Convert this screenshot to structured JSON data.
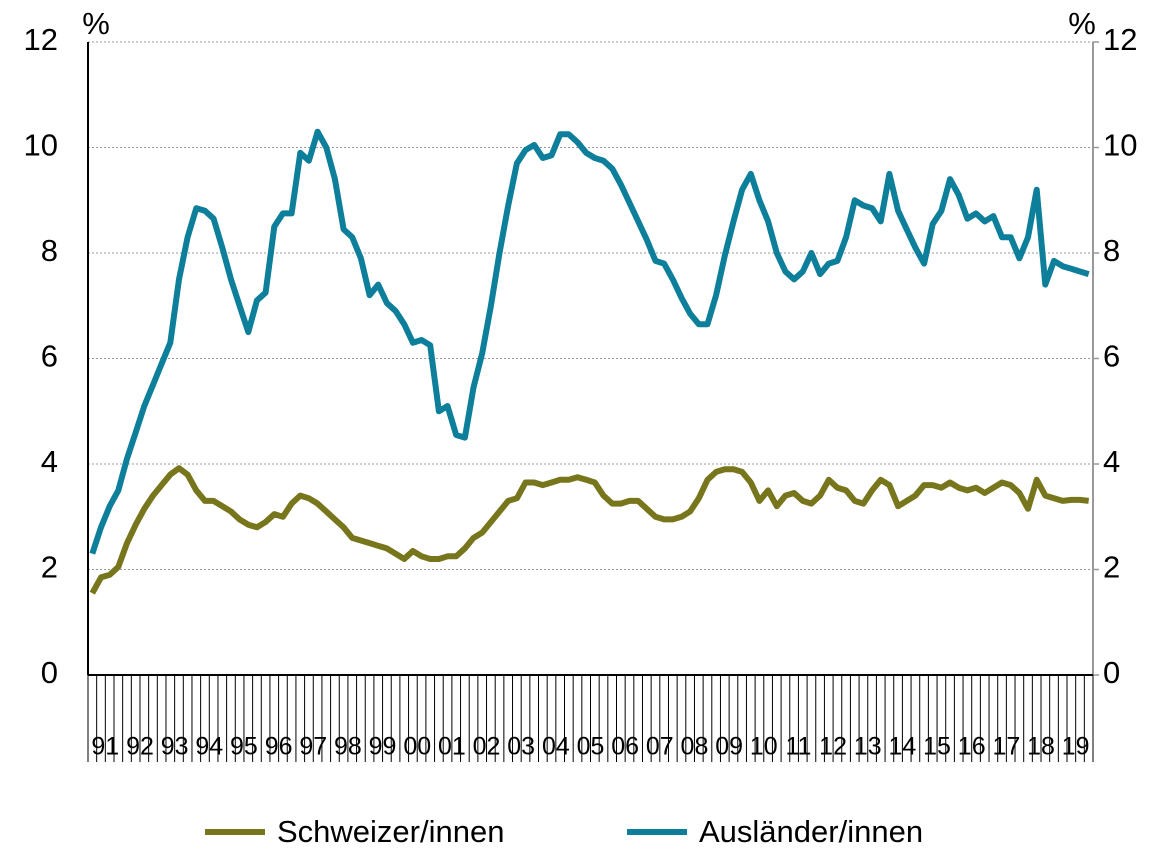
{
  "chart_data": {
    "type": "line",
    "y_unit": "%",
    "y2_unit": "%",
    "categories": [
      "91",
      null,
      null,
      null,
      "92",
      null,
      null,
      null,
      "93",
      null,
      null,
      null,
      "94",
      null,
      null,
      null,
      "95",
      null,
      null,
      null,
      "96",
      null,
      null,
      null,
      "97",
      null,
      null,
      null,
      "98",
      null,
      null,
      null,
      "99",
      null,
      null,
      null,
      "00",
      null,
      null,
      null,
      "01",
      null,
      null,
      null,
      "02",
      null,
      null,
      null,
      "03",
      null,
      null,
      null,
      "04",
      null,
      null,
      null,
      "05",
      null,
      null,
      null,
      "06",
      null,
      null,
      null,
      "07",
      null,
      null,
      null,
      "08",
      null,
      null,
      null,
      "09",
      null,
      null,
      null,
      "10",
      null,
      null,
      null,
      "11",
      null,
      null,
      null,
      "12",
      null,
      null,
      null,
      "13",
      null,
      null,
      null,
      "14",
      null,
      null,
      null,
      "15",
      null,
      null,
      null,
      "16",
      null,
      null,
      null,
      "17",
      null,
      null,
      null,
      "18",
      null,
      null,
      null,
      "19",
      null,
      null,
      null
    ],
    "series": [
      {
        "name": "Schweizer/innen",
        "color": "#77761c",
        "values": [
          1.55,
          1.85,
          1.9,
          2.05,
          2.5,
          2.85,
          3.15,
          3.4,
          3.6,
          3.8,
          3.92,
          3.8,
          3.5,
          3.3,
          3.3,
          3.2,
          3.1,
          2.95,
          2.85,
          2.8,
          2.9,
          3.05,
          3.0,
          3.25,
          3.4,
          3.35,
          3.25,
          3.1,
          2.95,
          2.8,
          2.6,
          2.55,
          2.5,
          2.45,
          2.4,
          2.3,
          2.2,
          2.35,
          2.25,
          2.2,
          2.2,
          2.25,
          2.25,
          2.4,
          2.6,
          2.7,
          2.9,
          3.1,
          3.3,
          3.35,
          3.65,
          3.65,
          3.6,
          3.65,
          3.7,
          3.7,
          3.75,
          3.7,
          3.65,
          3.4,
          3.25,
          3.25,
          3.3,
          3.3,
          3.15,
          3.0,
          2.95,
          2.95,
          3.0,
          3.1,
          3.35,
          3.7,
          3.85,
          3.9,
          3.9,
          3.85,
          3.65,
          3.3,
          3.5,
          3.2,
          3.4,
          3.45,
          3.3,
          3.25,
          3.4,
          3.7,
          3.55,
          3.5,
          3.3,
          3.25,
          3.5,
          3.7,
          3.6,
          3.2,
          3.3,
          3.4,
          3.6,
          3.6,
          3.55,
          3.65,
          3.55,
          3.5,
          3.55,
          3.45,
          3.55,
          3.65,
          3.6,
          3.45,
          3.15,
          3.7,
          3.4,
          3.35,
          3.3,
          3.32,
          3.32,
          3.3
        ]
      },
      {
        "name": "Ausländer/innen",
        "color": "#0e7f9a",
        "values": [
          2.3,
          2.8,
          3.2,
          3.5,
          4.1,
          4.6,
          5.1,
          5.5,
          5.9,
          6.3,
          7.5,
          8.3,
          8.85,
          8.8,
          8.65,
          8.1,
          7.5,
          7.0,
          6.5,
          7.1,
          7.25,
          8.5,
          8.75,
          8.75,
          9.9,
          9.75,
          10.3,
          10.0,
          9.4,
          8.45,
          8.3,
          7.9,
          7.2,
          7.4,
          7.05,
          6.9,
          6.65,
          6.3,
          6.35,
          6.25,
          5.0,
          5.1,
          4.55,
          4.5,
          5.45,
          6.1,
          7.0,
          8.0,
          8.9,
          9.7,
          9.95,
          10.05,
          9.8,
          9.85,
          10.25,
          10.25,
          10.1,
          9.9,
          9.8,
          9.75,
          9.6,
          9.3,
          8.95,
          8.6,
          8.25,
          7.85,
          7.8,
          7.5,
          7.15,
          6.85,
          6.65,
          6.65,
          7.2,
          7.95,
          8.6,
          9.2,
          9.5,
          9.0,
          8.6,
          8.0,
          7.65,
          7.5,
          7.65,
          8.0,
          7.6,
          7.8,
          7.85,
          8.3,
          9.0,
          8.9,
          8.85,
          8.6,
          9.5,
          8.8,
          8.45,
          8.1,
          7.8,
          8.55,
          8.8,
          9.4,
          9.1,
          8.65,
          8.75,
          8.6,
          8.7,
          8.3,
          8.3,
          7.9,
          8.3,
          9.2,
          7.4,
          7.85,
          7.75,
          7.7,
          7.65,
          7.6
        ]
      }
    ],
    "ylim": [
      0,
      12
    ],
    "yticks": [
      0,
      2,
      4,
      6,
      8,
      10,
      12
    ],
    "y2lim": [
      0,
      12
    ],
    "y2ticks": [
      0,
      2,
      4,
      6,
      8,
      10,
      12
    ],
    "grid": true,
    "legend": "bottom"
  }
}
